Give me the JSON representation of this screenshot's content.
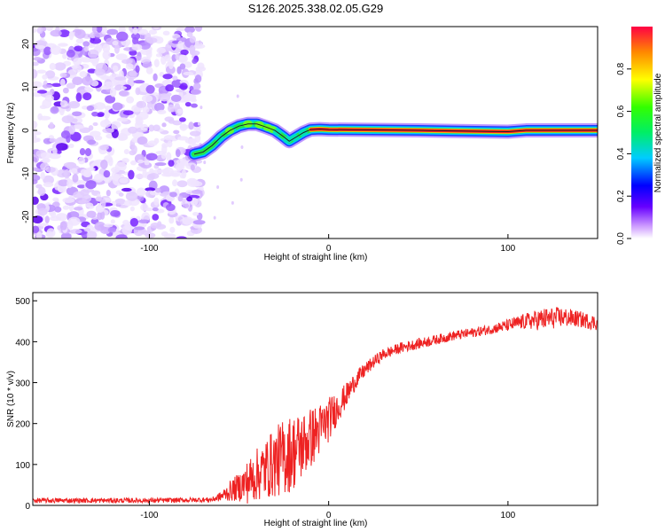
{
  "title": "S126.2025.338.02.05.G29",
  "colors": {
    "snr_line": "#ee2222",
    "ridge_line": "#222222",
    "axis": "#000000"
  },
  "chart_data": [
    {
      "type": "heatmap",
      "title": "S126.2025.338.02.05.G29",
      "xlabel": "Height of straight line (km)",
      "ylabel": "Frequency (Hz)",
      "xlim": [
        -165,
        150
      ],
      "ylim": [
        -25,
        24
      ],
      "xticks": [
        -100,
        0,
        100
      ],
      "yticks": [
        -20,
        -10,
        0,
        10,
        20
      ],
      "colorbar": {
        "label": "Normalized spectral amplitude",
        "range": [
          0,
          1
        ],
        "ticks": [
          0.0,
          0.2,
          0.4,
          0.6,
          0.8
        ]
      },
      "noise_region_end_km": -75,
      "ridge": {
        "height_km": [
          -75,
          -70,
          -65,
          -60,
          -55,
          -50,
          -45,
          -40,
          -35,
          -30,
          -25,
          -22,
          -18,
          -14,
          -10,
          -5,
          0,
          50,
          100,
          110,
          120,
          150
        ],
        "frequency_hz": [
          -5.5,
          -5,
          -3.5,
          -1.5,
          0,
          1,
          1.5,
          1.5,
          0.8,
          0,
          -1.5,
          -2.5,
          -1.5,
          -0.5,
          0.2,
          0.3,
          0.2,
          0,
          -0.3,
          0,
          0,
          0
        ]
      }
    },
    {
      "type": "line",
      "xlabel": "Height of straight line (km)",
      "ylabel": "SNR (10 * v/v)",
      "xlim": [
        -165,
        150
      ],
      "ylim": [
        0,
        520
      ],
      "xticks": [
        -100,
        0,
        100
      ],
      "yticks": [
        0,
        100,
        200,
        300,
        400,
        500
      ],
      "series": [
        {
          "name": "SNR",
          "x": [
            -165,
            -140,
            -120,
            -100,
            -80,
            -65,
            -60,
            -55,
            -50,
            -45,
            -40,
            -35,
            -30,
            -25,
            -20,
            -15,
            -10,
            -5,
            0,
            5,
            10,
            15,
            20,
            25,
            30,
            40,
            50,
            60,
            70,
            80,
            90,
            100,
            110,
            120,
            130,
            140,
            150
          ],
          "values": [
            12,
            12,
            12,
            12,
            13,
            14,
            22,
            35,
            45,
            58,
            75,
            90,
            105,
            118,
            130,
            145,
            165,
            185,
            210,
            240,
            270,
            305,
            330,
            350,
            368,
            385,
            395,
            405,
            415,
            422,
            430,
            440,
            450,
            455,
            460,
            455,
            445
          ],
          "noise_amplitude": [
            6,
            6,
            6,
            6,
            6,
            6,
            12,
            25,
            35,
            55,
            65,
            75,
            85,
            95,
            95,
            85,
            75,
            65,
            55,
            40,
            30,
            22,
            18,
            15,
            14,
            13,
            13,
            12,
            12,
            12,
            12,
            15,
            20,
            28,
            25,
            20,
            18
          ]
        }
      ]
    }
  ]
}
